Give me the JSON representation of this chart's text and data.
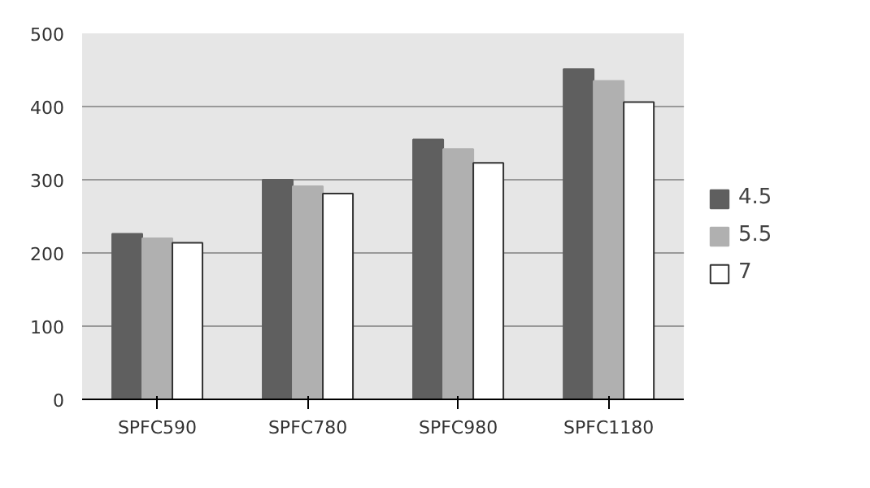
{
  "chart_data": {
    "type": "bar",
    "categories": [
      "SPFC590",
      "SPFC780",
      "SPFC980",
      "SPFC1180"
    ],
    "series": [
      {
        "name": "4.5",
        "color": "#5f5f5f",
        "values": [
          226,
          300,
          355,
          451
        ]
      },
      {
        "name": "5.5",
        "color": "#b0b0b0",
        "values": [
          220,
          291,
          342,
          435
        ]
      },
      {
        "name": "7",
        "color": "#ffffff",
        "values": [
          214,
          281,
          323,
          406
        ]
      }
    ],
    "ylim": [
      0,
      500
    ],
    "yticks": [
      0,
      100,
      200,
      300,
      400,
      500
    ],
    "grid": "y",
    "legend": "right"
  }
}
